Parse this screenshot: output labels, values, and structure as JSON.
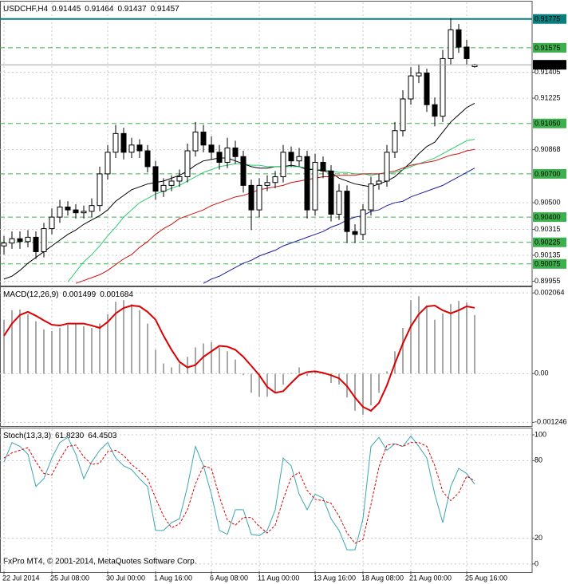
{
  "chart_data": [
    {
      "type": "candlestick",
      "title": "USDCHF,H4",
      "categories": [
        "22 Jul 2014",
        null,
        null,
        null,
        null,
        null,
        "25 Jul 08:00",
        null,
        null,
        null,
        null,
        null,
        null,
        "30 Jul 00:00",
        null,
        null,
        null,
        null,
        null,
        "1 Aug 16:00",
        null,
        null,
        null,
        null,
        null,
        null,
        "6 Aug 08:00",
        null,
        null,
        null,
        null,
        null,
        "11 Aug 00:00",
        null,
        null,
        null,
        null,
        null,
        null,
        "13 Aug 16:00",
        null,
        null,
        null,
        null,
        null,
        "18 Aug 08:00",
        null,
        null,
        null,
        null,
        null,
        "21 Aug 00:00",
        null,
        null,
        null,
        null,
        null,
        null,
        "25 Aug 16:00",
        null
      ],
      "open": [
        0.902,
        0.9022,
        0.9025,
        0.9023,
        0.9026,
        0.9016,
        0.9032,
        0.904,
        0.9047,
        0.9045,
        0.9043,
        0.9044,
        0.9048,
        0.907,
        0.9085,
        0.9098,
        0.9085,
        0.909,
        0.9086,
        0.9075,
        0.9058,
        0.9062,
        0.9065,
        0.9068,
        0.9086,
        0.9099,
        0.909,
        0.9085,
        0.9078,
        0.9088,
        0.9082,
        0.9062,
        0.9045,
        0.9062,
        0.9064,
        0.9068,
        0.9085,
        0.9079,
        0.9082,
        0.9045,
        0.9078,
        0.9072,
        0.9042,
        0.9058,
        0.903,
        0.9028,
        0.9045,
        0.9063,
        0.9065,
        0.9085,
        0.91,
        0.9122,
        0.9138,
        0.914,
        0.9118,
        0.911,
        0.915,
        0.917,
        0.9158,
        0.91445
      ],
      "high": [
        0.9027,
        0.903,
        0.903,
        0.9031,
        0.903,
        0.9036,
        0.9046,
        0.9052,
        0.9051,
        0.9049,
        0.9048,
        0.9053,
        0.9075,
        0.909,
        0.9104,
        0.9102,
        0.9095,
        0.9094,
        0.909,
        0.9079,
        0.9067,
        0.9069,
        0.9073,
        0.9091,
        0.9106,
        0.9104,
        0.9096,
        0.909,
        0.9095,
        0.9093,
        0.9086,
        0.9066,
        0.9067,
        0.9069,
        0.9072,
        0.909,
        0.9089,
        0.9088,
        0.9086,
        0.9084,
        0.9082,
        0.9076,
        0.9063,
        0.9062,
        0.9035,
        0.9049,
        0.9068,
        0.907,
        0.909,
        0.9106,
        0.9128,
        0.9144,
        0.9146,
        0.9143,
        0.9123,
        0.9156,
        0.9178,
        0.9174,
        0.9163,
        0.91464
      ],
      "low": [
        0.9014,
        0.9018,
        0.9018,
        0.9019,
        0.9011,
        0.9012,
        0.9028,
        0.9036,
        0.9041,
        0.9039,
        0.9039,
        0.904,
        0.9044,
        0.9066,
        0.9081,
        0.908,
        0.9081,
        0.9081,
        0.9071,
        0.9052,
        0.9054,
        0.9058,
        0.9061,
        0.9064,
        0.9082,
        0.9085,
        0.908,
        0.9073,
        0.9074,
        0.9077,
        0.9057,
        0.9031,
        0.904,
        0.9058,
        0.906,
        0.9064,
        0.9075,
        0.9075,
        0.9039,
        0.9041,
        0.9067,
        0.9037,
        0.9038,
        0.9022,
        0.9022,
        0.9024,
        0.9041,
        0.9059,
        0.9061,
        0.9081,
        0.9096,
        0.9118,
        0.9133,
        0.9113,
        0.9103,
        0.9106,
        0.9146,
        0.9154,
        0.9146,
        0.91437
      ],
      "close": [
        0.9022,
        0.9025,
        0.9023,
        0.9026,
        0.9016,
        0.9032,
        0.904,
        0.9047,
        0.9045,
        0.9043,
        0.9044,
        0.9048,
        0.907,
        0.9085,
        0.9098,
        0.9085,
        0.909,
        0.9086,
        0.9075,
        0.9058,
        0.9062,
        0.9065,
        0.9068,
        0.9086,
        0.9099,
        0.909,
        0.9085,
        0.9078,
        0.9088,
        0.9082,
        0.9062,
        0.9045,
        0.9062,
        0.9064,
        0.9068,
        0.9085,
        0.9079,
        0.9082,
        0.9045,
        0.9078,
        0.9072,
        0.9042,
        0.9058,
        0.903,
        0.9028,
        0.9045,
        0.9063,
        0.9065,
        0.9085,
        0.91,
        0.9122,
        0.9138,
        0.914,
        0.9118,
        0.911,
        0.915,
        0.917,
        0.9158,
        0.915,
        0.91457
      ],
      "up_color": "#ffffff",
      "down_color": "#000000",
      "series": [
        {
          "color": "#000000",
          "style": "line",
          "values": [
            0.8997,
            0.8999,
            0.9003,
            0.9008,
            0.9012,
            0.9016,
            0.902,
            0.9024,
            0.9028,
            0.9031,
            0.9035,
            0.9038,
            0.9041,
            0.9045,
            0.9051,
            0.9055,
            0.9059,
            0.9061,
            0.9063,
            0.9064,
            0.9065,
            0.9067,
            0.9069,
            0.9072,
            0.9076,
            0.9079,
            0.908,
            0.9081,
            0.9081,
            0.9079,
            0.9077,
            0.9075,
            0.9074,
            0.9074,
            0.9075,
            0.9075,
            0.9076,
            0.9075,
            0.9073,
            0.9073,
            0.9072,
            0.9071,
            0.9067,
            0.9065,
            0.9063,
            0.9062,
            0.9061,
            0.9063,
            0.9065,
            0.9068,
            0.9073,
            0.9078,
            0.9084,
            0.9089,
            0.9092,
            0.9099,
            0.9106,
            0.9111,
            0.9116,
            0.9119
          ]
        },
        {
          "color": "#2ecc71",
          "style": "line",
          "values": [
            null,
            null,
            null,
            null,
            null,
            null,
            null,
            null,
            0.8995,
            0.9002,
            0.9009,
            0.9014,
            0.902,
            0.9027,
            0.9033,
            0.904,
            0.9045,
            0.905,
            0.9053,
            0.9056,
            0.9058,
            0.906,
            0.9062,
            0.9065,
            0.9068,
            0.9071,
            0.9073,
            0.9075,
            0.9076,
            0.9077,
            0.9077,
            0.9076,
            0.9076,
            0.9075,
            0.9075,
            0.9075,
            0.9075,
            0.9075,
            0.9074,
            0.9073,
            0.9073,
            0.9072,
            0.9071,
            0.9071,
            0.907,
            0.907,
            0.9069,
            0.907,
            0.907,
            0.9071,
            0.9073,
            0.9075,
            0.9077,
            0.9079,
            0.9081,
            0.9084,
            0.9087,
            0.909,
            0.9093,
            0.9094
          ]
        },
        {
          "color": "#d01010",
          "style": "line",
          "values": [
            null,
            null,
            null,
            null,
            null,
            null,
            null,
            null,
            null,
            0.8994,
            0.8996,
            0.8998,
            0.9,
            0.9003,
            0.9007,
            0.9011,
            0.9014,
            0.9019,
            0.9023,
            0.9028,
            0.9032,
            0.9035,
            0.9039,
            0.9041,
            0.9043,
            0.9045,
            0.9048,
            0.905,
            0.9052,
            0.9054,
            0.9055,
            0.9057,
            0.9059,
            0.906,
            0.9061,
            0.9062,
            0.9064,
            0.9065,
            0.9066,
            0.9067,
            0.9068,
            0.9068,
            0.9069,
            0.9069,
            0.9069,
            0.907,
            0.907,
            0.907,
            0.9071,
            0.9072,
            0.9074,
            0.9076,
            0.9077,
            0.9078,
            0.9079,
            0.9081,
            0.9083,
            0.9084,
            0.9086,
            0.9087
          ]
        },
        {
          "color": "#1a1aa0",
          "style": "line",
          "values": [
            null,
            null,
            null,
            null,
            null,
            null,
            null,
            null,
            null,
            null,
            null,
            null,
            null,
            null,
            null,
            null,
            null,
            null,
            null,
            null,
            null,
            null,
            null,
            null,
            null,
            0.8994,
            0.8997,
            0.8999,
            0.9002,
            0.9005,
            0.9008,
            0.901,
            0.9013,
            0.9015,
            0.9017,
            0.902,
            0.9022,
            0.9024,
            0.9026,
            0.9028,
            0.903,
            0.9033,
            0.9035,
            0.9038,
            0.904,
            0.9041,
            0.9044,
            0.9045,
            0.9048,
            0.905,
            0.9051,
            0.9054,
            0.9056,
            0.9058,
            0.906,
            0.9062,
            0.9065,
            0.9068,
            0.9071,
            0.9074
          ]
        }
      ],
      "ylim": [
        0.8993,
        0.9189
      ],
      "yticks": [
        0.91405,
        0.91225,
        0.90868,
        {
          "value": 0.905,
          "label": "0.90500"
        },
        0.90315,
        0.90135,
        0.89955
      ],
      "levels": [
        {
          "value": 0.91775,
          "color": "#0a7f7f",
          "style": "solid"
        },
        {
          "value": 0.91575,
          "color": "#3cb04c",
          "style": "dashed"
        },
        {
          "value": 0.9105,
          "label": "0.91050",
          "color": "#3cb04c",
          "style": "dashed"
        },
        {
          "value": 0.907,
          "label": "0.90700",
          "color": "#3cb04c",
          "style": "dashed"
        },
        {
          "value": 0.904,
          "label": "0.90400",
          "color": "#3cb04c",
          "style": "dashed"
        },
        {
          "value": 0.90225,
          "color": "#3cb04c",
          "style": "dashed"
        },
        {
          "value": 0.90075,
          "color": "#3cb04c",
          "style": "dashed"
        }
      ],
      "grid": true
    },
    {
      "type": "macd",
      "title": "MACD(12,26,9)",
      "series": [
        {
          "color": "#a8a8a8",
          "style": "histogram",
          "values": [
            0.00138,
            0.00162,
            0.00164,
            0.00152,
            0.00134,
            0.00113,
            0.00109,
            0.00117,
            0.00125,
            0.00128,
            0.00121,
            0.00117,
            0.00128,
            0.00152,
            0.00184,
            0.00188,
            0.00178,
            0.00162,
            0.00128,
            0.00061,
            0.00026,
            0.00016,
            0.00026,
            0.00043,
            0.00067,
            0.00077,
            0.00081,
            0.00067,
            0.00057,
            0.00036,
            -4e-05,
            -0.00049,
            -0.00059,
            -0.00059,
            -0.00049,
            -0.00028,
            2e-05,
            0.00016,
            -6e-05,
            8e-05,
            -2e-05,
            -0.00024,
            -0.00028,
            -0.00061,
            -0.00095,
            -0.00105,
            -0.00081,
            -0.00049,
            6e-05,
            0.00057,
            0.00117,
            0.00188,
            0.00198,
            0.00174,
            0.00138,
            0.00154,
            0.00178,
            0.00186,
            0.00182,
            0.001499
          ]
        },
        {
          "color": "#dd0000",
          "style": "line",
          "values": [
            0.00097,
            0.00128,
            0.0015,
            0.00158,
            0.00148,
            0.00136,
            0.00125,
            0.00123,
            0.00128,
            0.00128,
            0.00128,
            0.00123,
            0.00117,
            0.00132,
            0.00154,
            0.00168,
            0.00174,
            0.00172,
            0.00158,
            0.00138,
            0.00097,
            0.00061,
            0.0003,
            0.00016,
            0.00022,
            0.00043,
            0.00057,
            0.00071,
            0.00069,
            0.00061,
            0.00043,
            0.0002,
            -4e-05,
            -0.00034,
            -0.00049,
            -0.00045,
            -0.00024,
            -4e-05,
            4e-05,
            6e-05,
            2e-05,
            -4e-05,
            -0.00012,
            -0.00032,
            -0.00061,
            -0.00085,
            -0.00095,
            -0.00075,
            -0.0003,
            0.00026,
            0.00077,
            0.00121,
            0.00152,
            0.00172,
            0.00174,
            0.00162,
            0.00154,
            0.00162,
            0.00172,
            0.001684
          ]
        }
      ],
      "header_values": [
        0.001499,
        0.001684
      ],
      "ylim": [
        -0.00132,
        0.00219
      ],
      "yticks": [
        0.002064,
        {
          "value": 0,
          "label": "0.00"
        },
        -0.001246
      ],
      "grid": true
    },
    {
      "type": "stochastic",
      "title": "Stoch(13,3,3)",
      "series": [
        {
          "color": "#3aa6b0",
          "style": "line",
          "values": [
            79,
            94,
            91,
            85,
            60,
            66,
            82,
            94,
            98,
            85,
            66,
            79,
            88,
            94,
            82,
            76,
            73,
            66,
            60,
            26,
            26,
            32,
            35,
            60,
            91,
            76,
            54,
            26,
            23,
            42,
            42,
            23,
            22,
            26,
            42,
            82,
            76,
            54,
            42,
            54,
            51,
            35,
            26,
            11,
            11,
            35,
            91,
            98,
            88,
            93,
            91,
            99,
            91,
            82,
            54,
            32,
            60,
            74,
            70,
            61.823
          ]
        },
        {
          "color": "#dd0000",
          "style": "dashed",
          "values": [
            82,
            86,
            88,
            90,
            79,
            70,
            69,
            81,
            91,
            92,
            83,
            77,
            78,
            87,
            88,
            84,
            77,
            72,
            66,
            51,
            37,
            28,
            31,
            42,
            62,
            76,
            74,
            52,
            34,
            30,
            36,
            36,
            29,
            24,
            30,
            50,
            67,
            71,
            57,
            50,
            49,
            47,
            37,
            24,
            16,
            19,
            46,
            75,
            92,
            93,
            91,
            94,
            94,
            91,
            76,
            56,
            49,
            55,
            68,
            64.4503
          ]
        }
      ],
      "header_values": [
        {
          "value": 61.823,
          "label": "61.8230"
        },
        64.4503
      ],
      "ylim": [
        -5.6,
        104.3
      ],
      "yticks": [
        100,
        80,
        20,
        0
      ],
      "grid": true
    }
  ],
  "footer": "FxPro MT4, © 2001-2014, MetaQuotes Software Corp."
}
